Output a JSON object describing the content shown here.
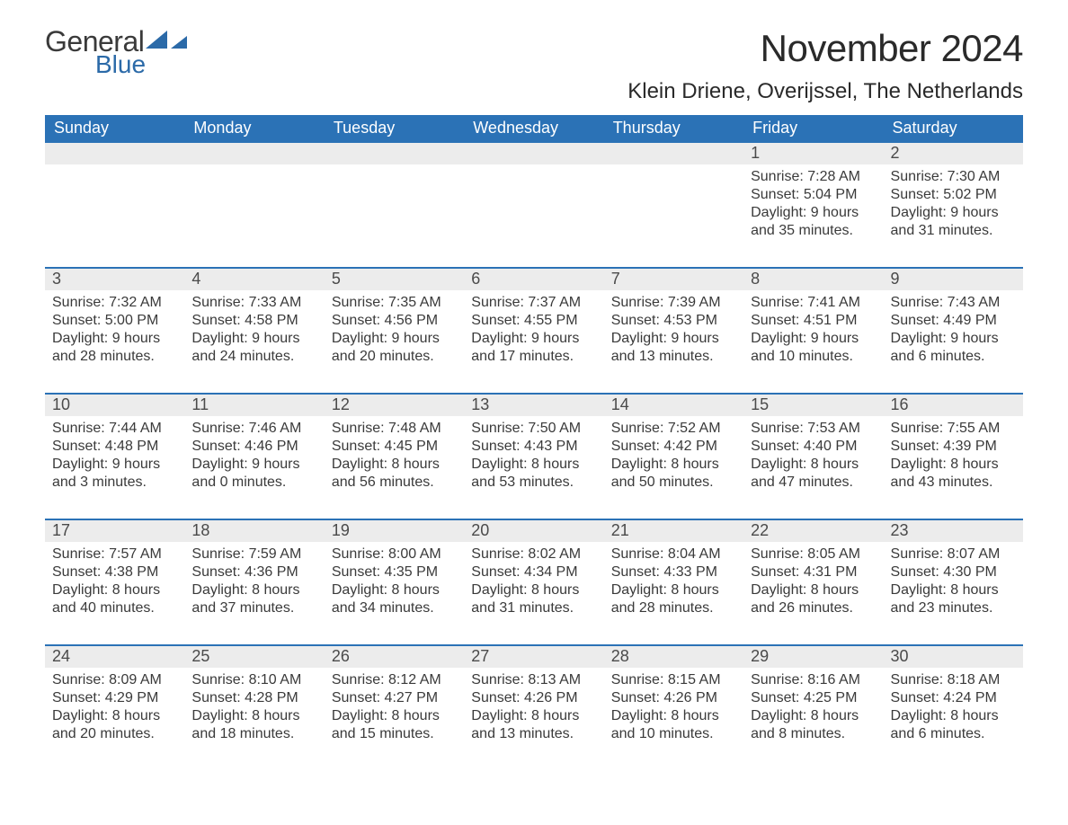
{
  "brand": {
    "part1": "General",
    "part2": "Blue",
    "color": "#2b6aa8"
  },
  "title": "November 2024",
  "location": "Klein Driene, Overijssel, The Netherlands",
  "header_bg": "#2b72b6",
  "header_fg": "#ffffff",
  "row_border": "#2b72b6",
  "daynum_bg": "#ececec",
  "text_color": "#3a3a3a",
  "labels": {
    "sunrise": "Sunrise:",
    "sunset": "Sunset:",
    "daylight": "Daylight:"
  },
  "weekdays": [
    "Sunday",
    "Monday",
    "Tuesday",
    "Wednesday",
    "Thursday",
    "Friday",
    "Saturday"
  ],
  "weeks": [
    [
      null,
      null,
      null,
      null,
      null,
      {
        "n": 1,
        "sunrise": "7:28 AM",
        "sunset": "5:04 PM",
        "day_h": 9,
        "day_m": 35
      },
      {
        "n": 2,
        "sunrise": "7:30 AM",
        "sunset": "5:02 PM",
        "day_h": 9,
        "day_m": 31
      }
    ],
    [
      {
        "n": 3,
        "sunrise": "7:32 AM",
        "sunset": "5:00 PM",
        "day_h": 9,
        "day_m": 28
      },
      {
        "n": 4,
        "sunrise": "7:33 AM",
        "sunset": "4:58 PM",
        "day_h": 9,
        "day_m": 24
      },
      {
        "n": 5,
        "sunrise": "7:35 AM",
        "sunset": "4:56 PM",
        "day_h": 9,
        "day_m": 20
      },
      {
        "n": 6,
        "sunrise": "7:37 AM",
        "sunset": "4:55 PM",
        "day_h": 9,
        "day_m": 17
      },
      {
        "n": 7,
        "sunrise": "7:39 AM",
        "sunset": "4:53 PM",
        "day_h": 9,
        "day_m": 13
      },
      {
        "n": 8,
        "sunrise": "7:41 AM",
        "sunset": "4:51 PM",
        "day_h": 9,
        "day_m": 10
      },
      {
        "n": 9,
        "sunrise": "7:43 AM",
        "sunset": "4:49 PM",
        "day_h": 9,
        "day_m": 6
      }
    ],
    [
      {
        "n": 10,
        "sunrise": "7:44 AM",
        "sunset": "4:48 PM",
        "day_h": 9,
        "day_m": 3
      },
      {
        "n": 11,
        "sunrise": "7:46 AM",
        "sunset": "4:46 PM",
        "day_h": 9,
        "day_m": 0
      },
      {
        "n": 12,
        "sunrise": "7:48 AM",
        "sunset": "4:45 PM",
        "day_h": 8,
        "day_m": 56
      },
      {
        "n": 13,
        "sunrise": "7:50 AM",
        "sunset": "4:43 PM",
        "day_h": 8,
        "day_m": 53
      },
      {
        "n": 14,
        "sunrise": "7:52 AM",
        "sunset": "4:42 PM",
        "day_h": 8,
        "day_m": 50
      },
      {
        "n": 15,
        "sunrise": "7:53 AM",
        "sunset": "4:40 PM",
        "day_h": 8,
        "day_m": 47
      },
      {
        "n": 16,
        "sunrise": "7:55 AM",
        "sunset": "4:39 PM",
        "day_h": 8,
        "day_m": 43
      }
    ],
    [
      {
        "n": 17,
        "sunrise": "7:57 AM",
        "sunset": "4:38 PM",
        "day_h": 8,
        "day_m": 40
      },
      {
        "n": 18,
        "sunrise": "7:59 AM",
        "sunset": "4:36 PM",
        "day_h": 8,
        "day_m": 37
      },
      {
        "n": 19,
        "sunrise": "8:00 AM",
        "sunset": "4:35 PM",
        "day_h": 8,
        "day_m": 34
      },
      {
        "n": 20,
        "sunrise": "8:02 AM",
        "sunset": "4:34 PM",
        "day_h": 8,
        "day_m": 31
      },
      {
        "n": 21,
        "sunrise": "8:04 AM",
        "sunset": "4:33 PM",
        "day_h": 8,
        "day_m": 28
      },
      {
        "n": 22,
        "sunrise": "8:05 AM",
        "sunset": "4:31 PM",
        "day_h": 8,
        "day_m": 26
      },
      {
        "n": 23,
        "sunrise": "8:07 AM",
        "sunset": "4:30 PM",
        "day_h": 8,
        "day_m": 23
      }
    ],
    [
      {
        "n": 24,
        "sunrise": "8:09 AM",
        "sunset": "4:29 PM",
        "day_h": 8,
        "day_m": 20
      },
      {
        "n": 25,
        "sunrise": "8:10 AM",
        "sunset": "4:28 PM",
        "day_h": 8,
        "day_m": 18
      },
      {
        "n": 26,
        "sunrise": "8:12 AM",
        "sunset": "4:27 PM",
        "day_h": 8,
        "day_m": 15
      },
      {
        "n": 27,
        "sunrise": "8:13 AM",
        "sunset": "4:26 PM",
        "day_h": 8,
        "day_m": 13
      },
      {
        "n": 28,
        "sunrise": "8:15 AM",
        "sunset": "4:26 PM",
        "day_h": 8,
        "day_m": 10
      },
      {
        "n": 29,
        "sunrise": "8:16 AM",
        "sunset": "4:25 PM",
        "day_h": 8,
        "day_m": 8
      },
      {
        "n": 30,
        "sunrise": "8:18 AM",
        "sunset": "4:24 PM",
        "day_h": 8,
        "day_m": 6
      }
    ]
  ]
}
